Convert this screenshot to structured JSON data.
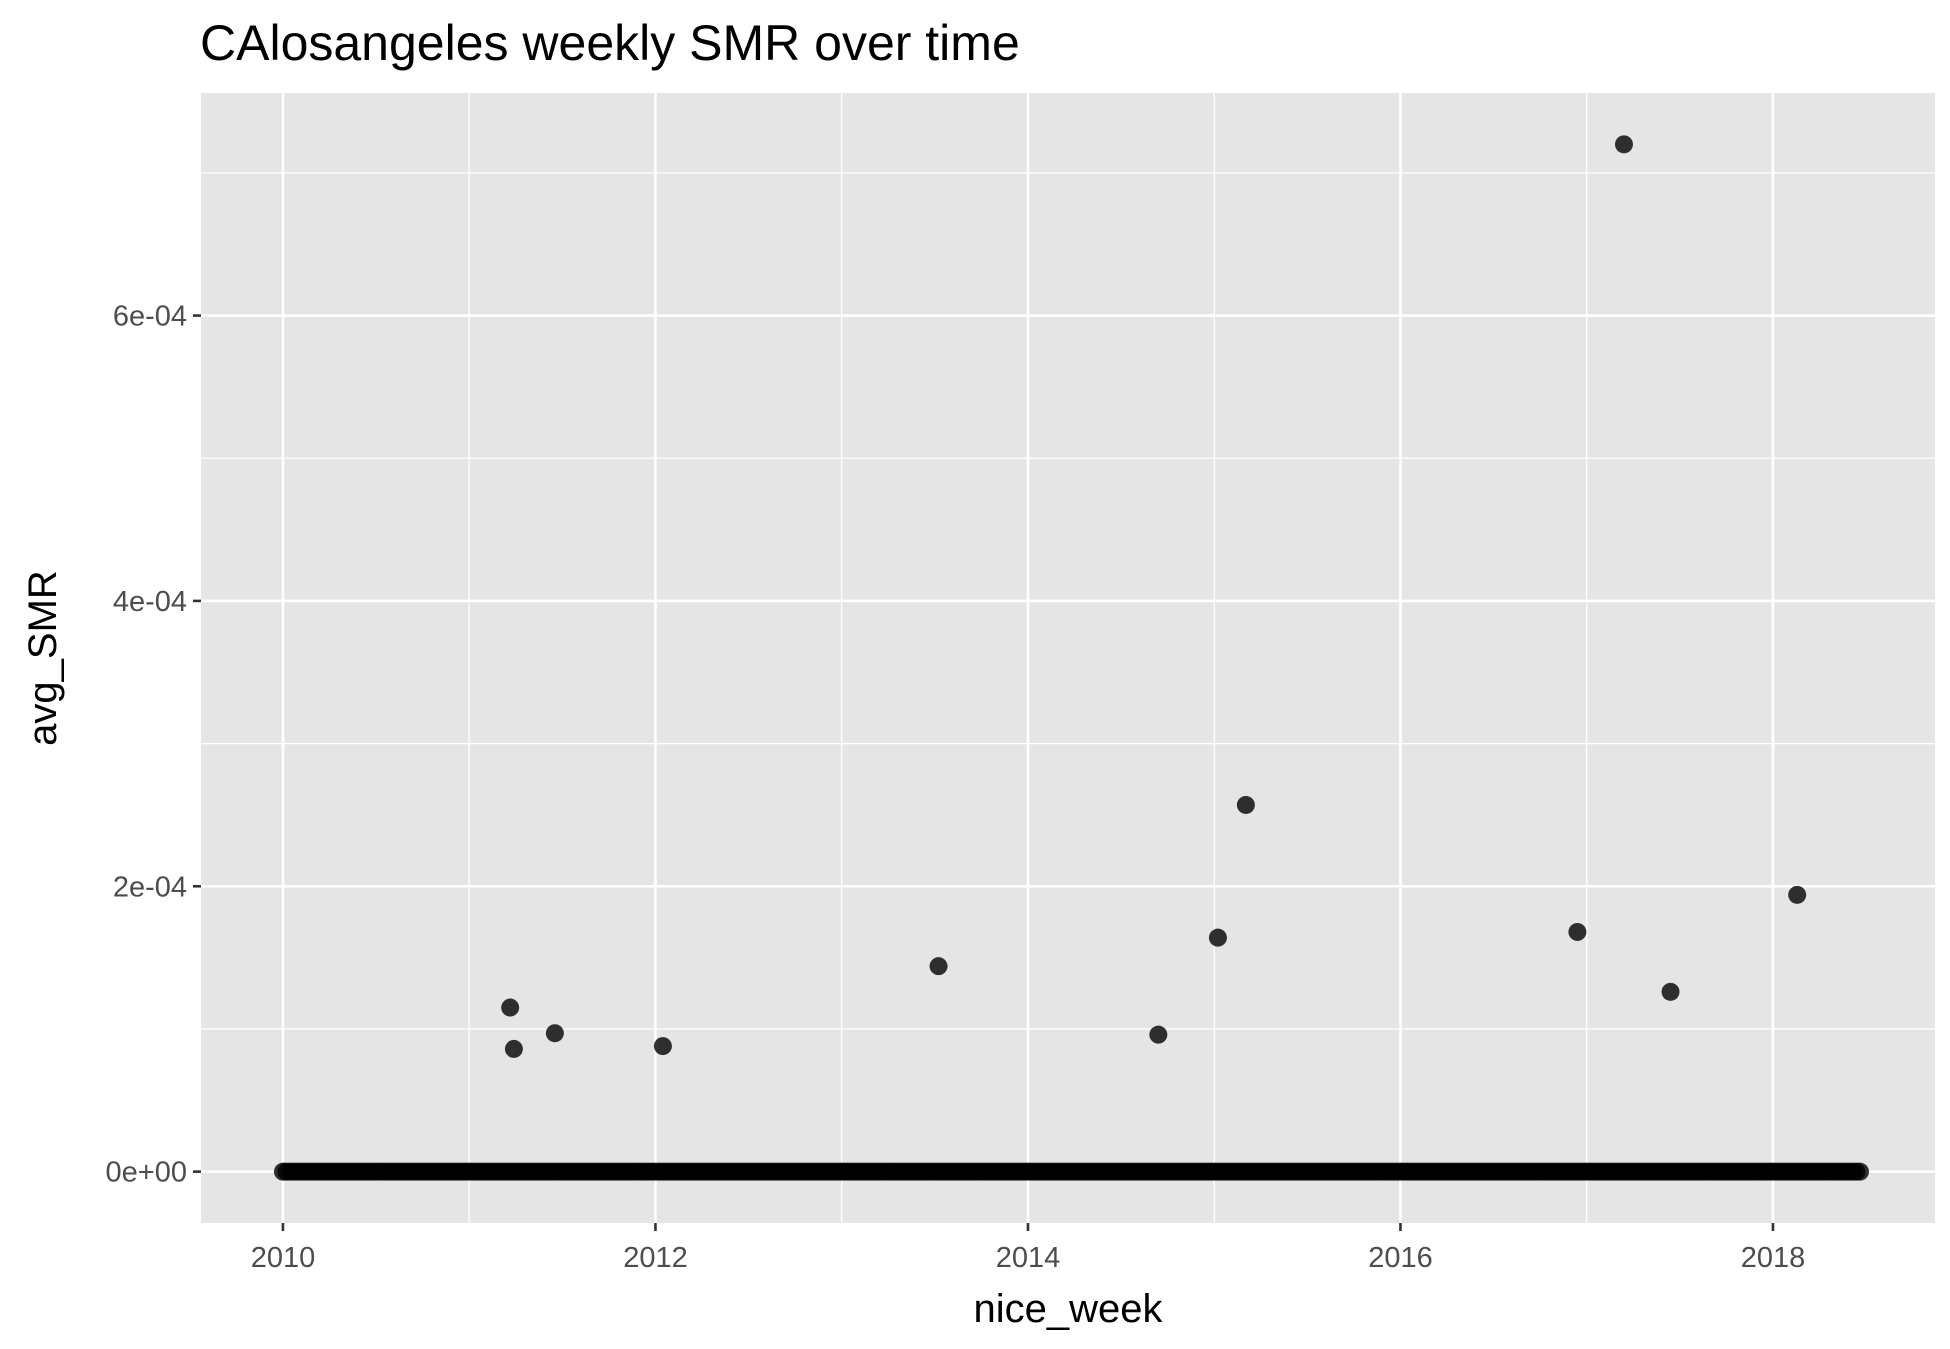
{
  "chart_data": {
    "type": "scatter",
    "title": "CAlosangeles weekly SMR over time",
    "xlabel": "nice_week",
    "ylabel": "avg_SMR",
    "xlim": [
      2009.56,
      2018.87
    ],
    "ylim": [
      -3.6e-05,
      0.000756
    ],
    "x_ticks": [
      2010,
      2012,
      2014,
      2016,
      2018
    ],
    "x_tick_labels": [
      "2010",
      "2012",
      "2014",
      "2016",
      "2018"
    ],
    "y_ticks": [
      0,
      0.0002,
      0.0004,
      0.0006
    ],
    "y_tick_labels": [
      "0e+00",
      "2e-04",
      "4e-04",
      "6e-04"
    ],
    "grid": true,
    "point_color": "#000000",
    "point_opacity": 0.8,
    "panel_background": "#e5e5e5",
    "baseline": {
      "x_start": 2010.0,
      "x_end": 2018.48,
      "step": 0.0192,
      "y": 0
    },
    "points": [
      {
        "x": 2011.22,
        "y": 0.000115
      },
      {
        "x": 2011.24,
        "y": 8.6e-05
      },
      {
        "x": 2011.46,
        "y": 9.7e-05
      },
      {
        "x": 2012.04,
        "y": 8.8e-05
      },
      {
        "x": 2013.52,
        "y": 0.000144
      },
      {
        "x": 2014.7,
        "y": 9.6e-05
      },
      {
        "x": 2015.02,
        "y": 0.000164
      },
      {
        "x": 2015.17,
        "y": 0.000257
      },
      {
        "x": 2016.95,
        "y": 0.000168
      },
      {
        "x": 2017.2,
        "y": 0.00072
      },
      {
        "x": 2017.45,
        "y": 0.000126
      },
      {
        "x": 2018.13,
        "y": 0.000194
      }
    ]
  }
}
